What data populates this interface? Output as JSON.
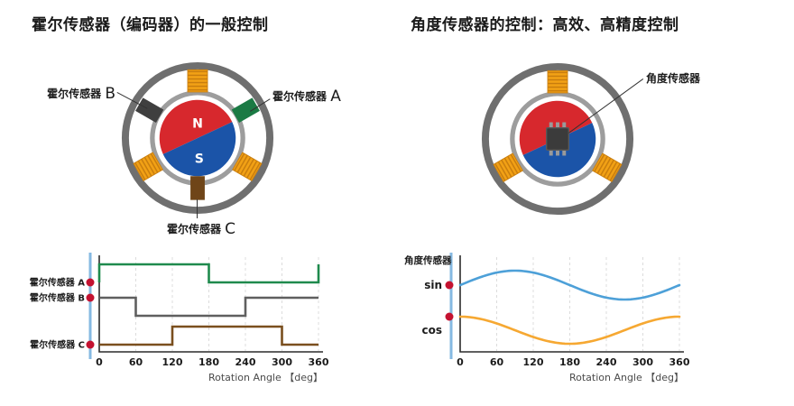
{
  "left_panel": {
    "title": "霍尔传感器（编码器）的一般控制",
    "motor": {
      "rotor_n": "N",
      "rotor_s": "S",
      "sensor_a": {
        "text": "霍尔传感器",
        "letter": "A"
      },
      "sensor_b": {
        "text": "霍尔传感器",
        "letter": "B"
      },
      "sensor_c": {
        "text": "霍尔传感器",
        "letter": "C"
      }
    }
  },
  "right_panel": {
    "title": "角度传感器的控制：高效、高精度控制",
    "motor": {
      "sensor_label": "角度传感器"
    }
  },
  "colors": {
    "ring_outer": "#6f6f6f",
    "ring_inner": "#9d9d9d",
    "rotor_n_red": "#d7282d",
    "rotor_s_blue": "#1b54a8",
    "coil_main": "#f2a115",
    "coil_stripe": "#c87d0e",
    "sensor_a_green": "#1b7a44",
    "sensor_b_dark": "#3f3f3f",
    "sensor_c_brown": "#6f4518",
    "chip_body": "#3b3b3b",
    "chip_pin": "#9a9a9a",
    "axis": "#2b2b2b",
    "tick_text": "#1a1a1a",
    "xlabel_text": "#4a4a4a",
    "grid": "#dcdcdc",
    "guide_line": "#85b9e2",
    "marker_red": "#c41230"
  },
  "chart_data": [
    {
      "id": "hall-waveforms",
      "type": "line",
      "subtype": "digital-square-wave",
      "x_range": [
        0,
        360
      ],
      "x_ticks": [
        0,
        60,
        120,
        180,
        240,
        300,
        360
      ],
      "xlabel": "Rotation Angle 【deg】",
      "grid": "vertical-dashed",
      "series": [
        {
          "name": "霍尔传感器 A",
          "color": "#1f8a4d",
          "value_at_0": 0,
          "points_deg_level": [
            [
              0,
              0
            ],
            [
              0,
              1
            ],
            [
              180,
              1
            ],
            [
              180,
              0
            ],
            [
              360,
              0
            ],
            [
              360,
              1
            ]
          ]
        },
        {
          "name": "霍尔传感器 B",
          "color": "#5f5f5f",
          "value_at_0": 1,
          "points_deg_level": [
            [
              0,
              1
            ],
            [
              60,
              1
            ],
            [
              60,
              0
            ],
            [
              240,
              0
            ],
            [
              240,
              1
            ],
            [
              360,
              1
            ]
          ]
        },
        {
          "name": "霍尔传感器 C",
          "color": "#7a4f1e",
          "value_at_0": 0,
          "points_deg_level": [
            [
              0,
              0
            ],
            [
              120,
              0
            ],
            [
              120,
              1
            ],
            [
              300,
              1
            ],
            [
              300,
              0
            ],
            [
              360,
              0
            ]
          ]
        }
      ]
    },
    {
      "id": "angle-sensor-waveforms",
      "type": "line",
      "subtype": "analog-sine",
      "title": "角度传感器",
      "x_range": [
        0,
        360
      ],
      "x_ticks": [
        0,
        60,
        120,
        180,
        240,
        300,
        360
      ],
      "xlabel": "Rotation Angle 【deg】",
      "grid": "vertical-dashed",
      "series": [
        {
          "name": "sin",
          "function": "sin",
          "color": "#4da0d8",
          "amplitude": 1,
          "phase_deg": 0
        },
        {
          "name": "cos",
          "function": "cos",
          "color": "#f6a832",
          "amplitude": 1,
          "phase_deg": 0
        }
      ]
    }
  ]
}
